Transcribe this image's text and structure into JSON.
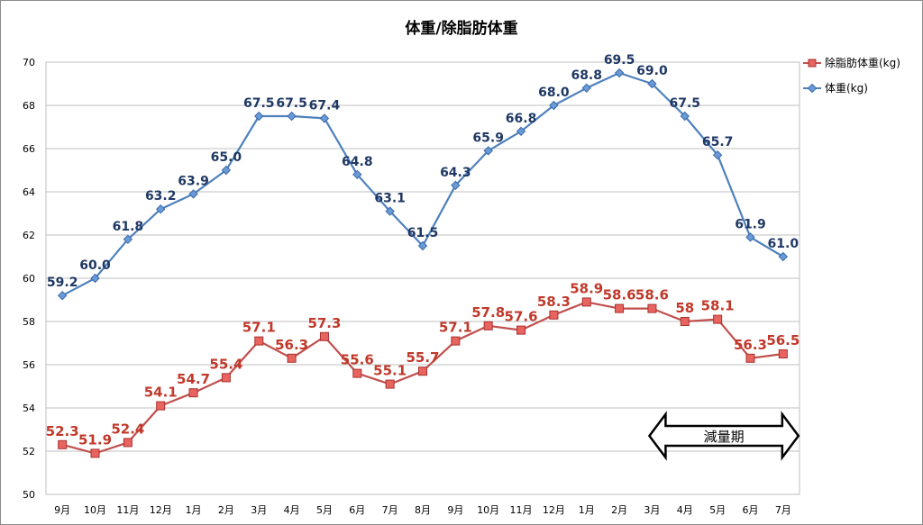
{
  "chart_data": {
    "type": "line",
    "title": "体重/除脂肪体重",
    "categories": [
      "9月",
      "10月",
      "11月",
      "12月",
      "1月",
      "2月",
      "3月",
      "4月",
      "5月",
      "6月",
      "7月",
      "8月",
      "9月",
      "10月",
      "11月",
      "12月",
      "1月",
      "2月",
      "3月",
      "4月",
      "5月",
      "6月",
      "7月"
    ],
    "ylim": [
      50,
      70
    ],
    "yticks": [
      50,
      52,
      54,
      56,
      58,
      60,
      62,
      64,
      66,
      68,
      70
    ],
    "grid": true,
    "legend_position": "right",
    "series": [
      {
        "name": "除脂肪体重(kg)",
        "color": "#c0504d",
        "marker": "square",
        "values": [
          52.3,
          51.9,
          52.4,
          54.1,
          54.7,
          55.4,
          57.1,
          56.3,
          57.3,
          55.6,
          55.1,
          55.7,
          57.1,
          57.8,
          57.6,
          58.3,
          58.9,
          58.6,
          58.6,
          58,
          58.1,
          56.3,
          56.5
        ],
        "labels": [
          "52.3",
          "51.9",
          "52.4",
          "54.1",
          "54.7",
          "55.4",
          "57.1",
          "56.3",
          "57.3",
          "55.6",
          "55.1",
          "55.7",
          "57.1",
          "57.8",
          "57.6",
          "58.3",
          "58.9",
          "58.6",
          "58.6",
          "58",
          "58.1",
          "56.3",
          "56.5"
        ]
      },
      {
        "name": "体重(kg)",
        "color": "#4f81bd",
        "marker": "diamond",
        "values": [
          59.2,
          60.0,
          61.8,
          63.2,
          63.9,
          65.0,
          67.5,
          67.5,
          67.4,
          64.8,
          63.1,
          61.5,
          64.3,
          65.9,
          66.8,
          68.0,
          68.8,
          69.5,
          69.0,
          67.5,
          65.7,
          61.9,
          61.0
        ],
        "labels": [
          "59.2",
          "60.0",
          "61.8",
          "63.2",
          "63.9",
          "65.0",
          "67.5",
          "67.5",
          "67.4",
          "64.8",
          "63.1",
          "61.5",
          "64.3",
          "65.9",
          "66.8",
          "68.0",
          "68.8",
          "69.5",
          "69.0",
          "67.5",
          "65.7",
          "61.9",
          "61.0"
        ]
      }
    ],
    "annotation": {
      "text": "減量期",
      "from_index": 18,
      "to_index": 22
    }
  }
}
